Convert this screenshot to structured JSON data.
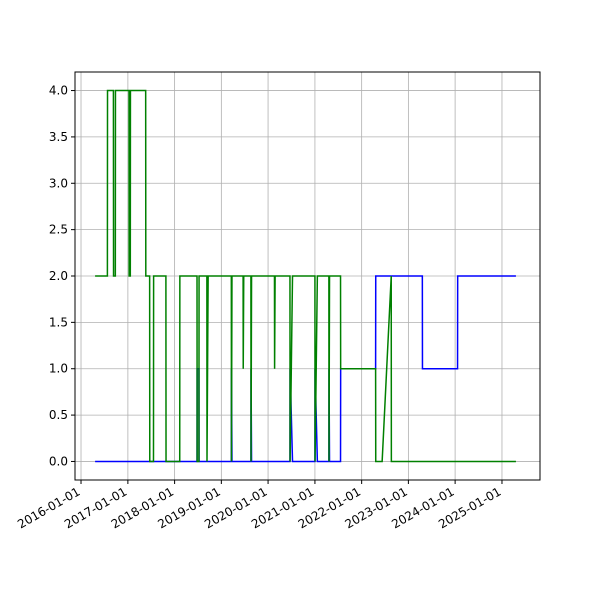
{
  "chart_data": {
    "type": "line",
    "x": [
      "2016-04-20",
      "2016-07-25",
      "2016-07-26",
      "2016-09-10",
      "2016-09-11",
      "2016-09-25",
      "2016-09-26",
      "2017-01-10",
      "2017-01-11",
      "2017-01-20",
      "2017-01-21",
      "2017-05-20",
      "2017-05-21",
      "2017-06-20",
      "2017-06-21",
      "2017-07-20",
      "2017-07-21",
      "2017-10-25",
      "2017-10-26",
      "2018-02-10",
      "2018-02-11",
      "2018-06-25",
      "2018-06-26",
      "2018-07-10",
      "2018-07-11",
      "2018-09-10",
      "2018-09-11",
      "2018-09-20",
      "2019-03-20",
      "2019-03-21",
      "2019-03-25",
      "2019-06-20",
      "2019-06-21",
      "2019-06-25",
      "2019-08-20",
      "2019-08-21",
      "2019-08-25",
      "2020-02-20",
      "2020-02-21",
      "2020-02-25",
      "2020-06-20",
      "2020-06-21",
      "2020-07-10",
      "2021-01-01",
      "2021-01-02",
      "2021-01-20",
      "2021-04-20",
      "2021-04-21",
      "2021-04-25",
      "2021-07-20",
      "2021-07-21",
      "2022-04-20",
      "2022-04-21",
      "2022-06-10",
      "2022-08-20",
      "2022-08-21",
      "2023-04-20",
      "2023-04-21",
      "2024-01-20",
      "2024-01-21",
      "2025-04-20"
    ],
    "series": [
      {
        "color": "#0000ff",
        "values": [
          0,
          0,
          0,
          0,
          0,
          0,
          0,
          0,
          0,
          0,
          0,
          0,
          0,
          0,
          0,
          0,
          0,
          0,
          0,
          0,
          0,
          0,
          1,
          1,
          0,
          0,
          0,
          0,
          0,
          1,
          0,
          0,
          0,
          0,
          0,
          1,
          0,
          0,
          0,
          0,
          0,
          1,
          0,
          0,
          1,
          0,
          0,
          1,
          0,
          0,
          1,
          1,
          2,
          2,
          2,
          2,
          2,
          1,
          1,
          2,
          2
        ]
      },
      {
        "color": "#008000",
        "values": [
          2,
          2,
          4,
          4,
          2,
          2,
          4,
          4,
          2,
          2,
          4,
          4,
          2,
          2,
          0,
          0,
          2,
          2,
          0,
          0,
          2,
          2,
          0,
          0,
          2,
          2,
          0,
          2,
          2,
          0,
          2,
          2,
          1,
          2,
          2,
          0,
          2,
          2,
          1,
          2,
          2,
          0,
          2,
          2,
          0,
          2,
          2,
          0,
          2,
          2,
          1,
          1,
          0,
          0,
          2,
          0,
          0,
          0,
          0,
          0,
          0
        ]
      }
    ],
    "xlim": [
      "2015-11-15",
      "2025-10-25"
    ],
    "xticks": [
      "2016-01-01",
      "2017-01-01",
      "2018-01-01",
      "2019-01-01",
      "2020-01-01",
      "2021-01-01",
      "2022-01-01",
      "2023-01-01",
      "2024-01-01",
      "2025-01-01"
    ],
    "ylim": [
      -0.2,
      4.2
    ],
    "yticks": [
      {
        "value": 0,
        "label": "0.0"
      },
      {
        "value": 0.5,
        "label": "0.5"
      },
      {
        "value": 1,
        "label": "1.0"
      },
      {
        "value": 1.5,
        "label": "1.5"
      },
      {
        "value": 2,
        "label": "2.0"
      },
      {
        "value": 2.5,
        "label": "2.5"
      },
      {
        "value": 3,
        "label": "3.0"
      },
      {
        "value": 3.5,
        "label": "3.5"
      },
      {
        "value": 4,
        "label": "4.0"
      }
    ],
    "grid": true
  }
}
